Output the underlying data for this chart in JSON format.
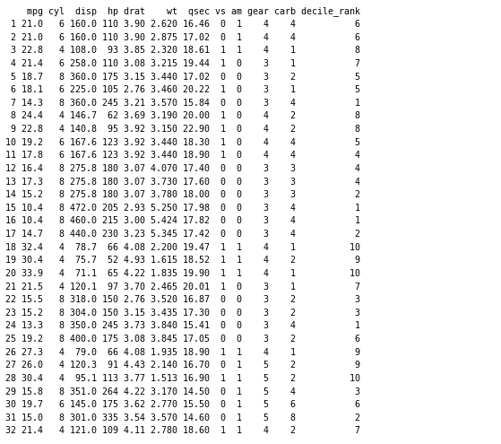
{
  "columns": [
    "",
    "mpg",
    "cyl",
    "disp",
    "hp",
    "drat",
    "wt",
    "qsec",
    "vs",
    "am",
    "gear",
    "carb",
    "decile_rank"
  ],
  "rows": [
    [
      1,
      21.0,
      6,
      160.0,
      110,
      3.9,
      2.62,
      16.46,
      0,
      1,
      4,
      4,
      6
    ],
    [
      2,
      21.0,
      6,
      160.0,
      110,
      3.9,
      2.875,
      17.02,
      0,
      1,
      4,
      4,
      6
    ],
    [
      3,
      22.8,
      4,
      108.0,
      93,
      3.85,
      2.32,
      18.61,
      1,
      1,
      4,
      1,
      8
    ],
    [
      4,
      21.4,
      6,
      258.0,
      110,
      3.08,
      3.215,
      19.44,
      1,
      0,
      3,
      1,
      7
    ],
    [
      5,
      18.7,
      8,
      360.0,
      175,
      3.15,
      3.44,
      17.02,
      0,
      0,
      3,
      2,
      5
    ],
    [
      6,
      18.1,
      6,
      225.0,
      105,
      2.76,
      3.46,
      20.22,
      1,
      0,
      3,
      1,
      5
    ],
    [
      7,
      14.3,
      8,
      360.0,
      245,
      3.21,
      3.57,
      15.84,
      0,
      0,
      3,
      4,
      1
    ],
    [
      8,
      24.4,
      4,
      146.7,
      62,
      3.69,
      3.19,
      20.0,
      1,
      0,
      4,
      2,
      8
    ],
    [
      9,
      22.8,
      4,
      140.8,
      95,
      3.92,
      3.15,
      22.9,
      1,
      0,
      4,
      2,
      8
    ],
    [
      10,
      19.2,
      6,
      167.6,
      123,
      3.92,
      3.44,
      18.3,
      1,
      0,
      4,
      4,
      5
    ],
    [
      11,
      17.8,
      6,
      167.6,
      123,
      3.92,
      3.44,
      18.9,
      1,
      0,
      4,
      4,
      4
    ],
    [
      12,
      16.4,
      8,
      275.8,
      180,
      3.07,
      4.07,
      17.4,
      0,
      0,
      3,
      3,
      4
    ],
    [
      13,
      17.3,
      8,
      275.8,
      180,
      3.07,
      3.73,
      17.6,
      0,
      0,
      3,
      3,
      4
    ],
    [
      14,
      15.2,
      8,
      275.8,
      180,
      3.07,
      3.78,
      18.0,
      0,
      0,
      3,
      3,
      2
    ],
    [
      15,
      10.4,
      8,
      472.0,
      205,
      2.93,
      5.25,
      17.98,
      0,
      0,
      3,
      4,
      1
    ],
    [
      16,
      10.4,
      8,
      460.0,
      215,
      3.0,
      5.424,
      17.82,
      0,
      0,
      3,
      4,
      1
    ],
    [
      17,
      14.7,
      8,
      440.0,
      230,
      3.23,
      5.345,
      17.42,
      0,
      0,
      3,
      4,
      2
    ],
    [
      18,
      32.4,
      4,
      78.7,
      66,
      4.08,
      2.2,
      19.47,
      1,
      1,
      4,
      1,
      10
    ],
    [
      19,
      30.4,
      4,
      75.7,
      52,
      4.93,
      1.615,
      18.52,
      1,
      1,
      4,
      2,
      9
    ],
    [
      20,
      33.9,
      4,
      71.1,
      65,
      4.22,
      1.835,
      19.9,
      1,
      1,
      4,
      1,
      10
    ],
    [
      21,
      21.5,
      4,
      120.1,
      97,
      3.7,
      2.465,
      20.01,
      1,
      0,
      3,
      1,
      7
    ],
    [
      22,
      15.5,
      8,
      318.0,
      150,
      2.76,
      3.52,
      16.87,
      0,
      0,
      3,
      2,
      3
    ],
    [
      23,
      15.2,
      8,
      304.0,
      150,
      3.15,
      3.435,
      17.3,
      0,
      0,
      3,
      2,
      3
    ],
    [
      24,
      13.3,
      8,
      350.0,
      245,
      3.73,
      3.84,
      15.41,
      0,
      0,
      3,
      4,
      1
    ],
    [
      25,
      19.2,
      8,
      400.0,
      175,
      3.08,
      3.845,
      17.05,
      0,
      0,
      3,
      2,
      6
    ],
    [
      26,
      27.3,
      4,
      79.0,
      66,
      4.08,
      1.935,
      18.9,
      1,
      1,
      4,
      1,
      9
    ],
    [
      27,
      26.0,
      4,
      120.3,
      91,
      4.43,
      2.14,
      16.7,
      0,
      1,
      5,
      2,
      9
    ],
    [
      28,
      30.4,
      4,
      95.1,
      113,
      3.77,
      1.513,
      16.9,
      1,
      1,
      5,
      2,
      10
    ],
    [
      29,
      15.8,
      8,
      351.0,
      264,
      4.22,
      3.17,
      14.5,
      0,
      1,
      5,
      4,
      3
    ],
    [
      30,
      19.7,
      6,
      145.0,
      175,
      3.62,
      2.77,
      15.5,
      0,
      1,
      5,
      6,
      6
    ],
    [
      31,
      15.0,
      8,
      301.0,
      335,
      3.54,
      3.57,
      14.6,
      0,
      1,
      5,
      8,
      2
    ],
    [
      32,
      21.4,
      4,
      121.0,
      109,
      4.11,
      2.78,
      18.6,
      1,
      1,
      4,
      2,
      7
    ]
  ],
  "font_size": 7.2,
  "bg_color": "#ffffff",
  "text_color": "#000000"
}
